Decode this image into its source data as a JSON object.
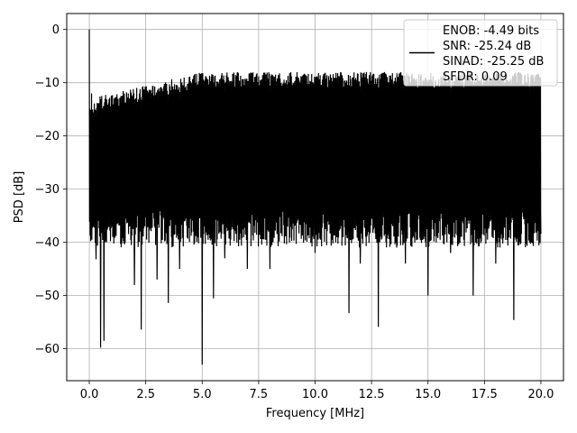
{
  "chart_data": {
    "type": "line",
    "xlabel": "Frequency [MHz]",
    "ylabel": "PSD [dB]",
    "xlim": [
      -1.0,
      21.0
    ],
    "ylim": [
      -66.0,
      3.0
    ],
    "xticks": [
      0.0,
      2.5,
      5.0,
      7.5,
      10.0,
      12.5,
      15.0,
      17.5,
      20.0
    ],
    "xtick_labels": [
      "0.0",
      "2.5",
      "5.0",
      "7.5",
      "10.0",
      "12.5",
      "15.0",
      "17.5",
      "20.0"
    ],
    "yticks": [
      0,
      -10,
      -20,
      -30,
      -40,
      -50,
      -60
    ],
    "ytick_labels": [
      "0",
      "−10",
      "−20",
      "−30",
      "−40",
      "−50",
      "−60"
    ],
    "grid": true,
    "legend_position": "top-right",
    "series": [
      {
        "name": "",
        "color": "#000000",
        "description_points": {
          "x": [
            0.0,
            0.05,
            0.1,
            0.2,
            0.3,
            0.4,
            0.5,
            0.65,
            1.0,
            2.0,
            2.3,
            3.0,
            3.5,
            4.0,
            5.0,
            5.5,
            6.0,
            7.0,
            8.0,
            10.0,
            11.5,
            12.0,
            12.8,
            14.0,
            15.0,
            16.0,
            17.0,
            18.0,
            18.8,
            19.5,
            20.0
          ],
          "y": [
            0.0,
            -36.5,
            -12.0,
            -37.0,
            -43.2,
            -14.0,
            -59.8,
            -58.5,
            -37.0,
            -48.0,
            -56.4,
            -47.0,
            -51.4,
            -45.0,
            -63.0,
            -50.5,
            -43.0,
            -45.0,
            -45.0,
            -42.0,
            -53.3,
            -44.0,
            -55.9,
            -44.0,
            -50.0,
            -42.0,
            -50.0,
            -44.0,
            -54.6,
            -40.0,
            -38.4
          ]
        }
      }
    ],
    "legend": {
      "entries": [
        "ENOB: -4.49 bits",
        "SNR: -25.24 dB",
        "SINAD: -25.25 dB",
        "SFDR: 0.09"
      ]
    }
  }
}
